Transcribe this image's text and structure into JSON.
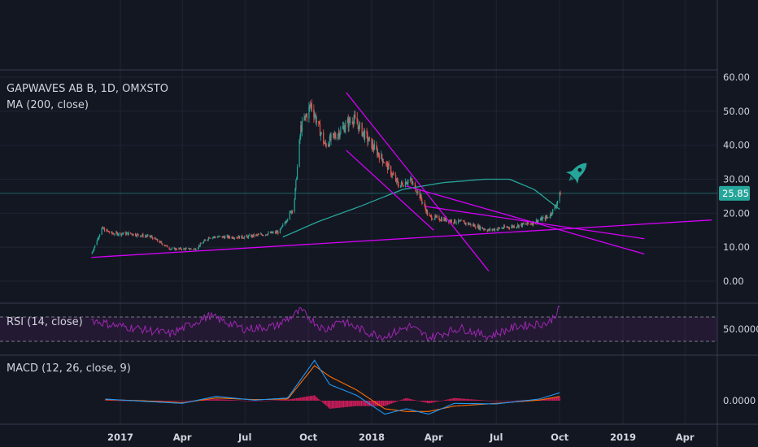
{
  "chart_data": {
    "type": "candlestick",
    "symbol_title": "GAPWAVES AB B, 1D, OMXSTO",
    "indicators": {
      "ma": {
        "label": "MA (200, close)",
        "color": "#26a69a"
      },
      "rsi": {
        "label": "RSI (14, close)",
        "level_label": "50.0000",
        "bounds": [
          30,
          70
        ],
        "color": "#9c27b0"
      },
      "macd": {
        "label": "MACD (12, 26, close, 9)",
        "level_label": "0.0000",
        "macd_color": "#2196f3",
        "signal_color": "#ff6d00",
        "hist_color": "#e91e63"
      }
    },
    "price_axis": {
      "ticks": [
        "60.00",
        "50.00",
        "40.00",
        "30.00",
        "20.00",
        "10.00",
        "0.00"
      ],
      "ylim": [
        -5,
        62
      ]
    },
    "time_axis": {
      "ticks": [
        {
          "label": "2017",
          "date": "2017-01-01"
        },
        {
          "label": "Apr",
          "date": "2017-04-01"
        },
        {
          "label": "Jul",
          "date": "2017-07-01"
        },
        {
          "label": "Oct",
          "date": "2017-10-01"
        },
        {
          "label": "2018",
          "date": "2018-01-01"
        },
        {
          "label": "Apr",
          "date": "2018-04-01"
        },
        {
          "label": "Jul",
          "date": "2018-07-01"
        },
        {
          "label": "Oct",
          "date": "2018-10-01"
        },
        {
          "label": "2019",
          "date": "2019-01-01"
        },
        {
          "label": "Apr",
          "date": "2019-04-01"
        }
      ]
    },
    "last_price": "25.85",
    "last_price_value": 25.85,
    "price_keypoints": [
      {
        "date": "2016-11-20",
        "close": 8.0
      },
      {
        "date": "2016-12-05",
        "close": 15.5
      },
      {
        "date": "2016-12-20",
        "close": 14.0
      },
      {
        "date": "2017-01-15",
        "close": 14.0
      },
      {
        "date": "2017-02-15",
        "close": 13.0
      },
      {
        "date": "2017-03-15",
        "close": 9.5
      },
      {
        "date": "2017-04-20",
        "close": 9.5
      },
      {
        "date": "2017-05-10",
        "close": 13.0
      },
      {
        "date": "2017-07-01",
        "close": 13.0
      },
      {
        "date": "2017-08-20",
        "close": 14.5
      },
      {
        "date": "2017-09-10",
        "close": 22.0
      },
      {
        "date": "2017-09-20",
        "close": 45.0
      },
      {
        "date": "2017-10-05",
        "close": 52.0
      },
      {
        "date": "2017-10-25",
        "close": 40.0
      },
      {
        "date": "2017-11-15",
        "close": 44.0
      },
      {
        "date": "2017-12-05",
        "close": 48.0
      },
      {
        "date": "2017-12-25",
        "close": 42.0
      },
      {
        "date": "2018-01-20",
        "close": 35.0
      },
      {
        "date": "2018-02-10",
        "close": 28.0
      },
      {
        "date": "2018-02-25",
        "close": 30.0
      },
      {
        "date": "2018-03-10",
        "close": 26.0
      },
      {
        "date": "2018-03-25",
        "close": 19.0
      },
      {
        "date": "2018-04-20",
        "close": 18.0
      },
      {
        "date": "2018-05-20",
        "close": 17.0
      },
      {
        "date": "2018-06-20",
        "close": 15.0
      },
      {
        "date": "2018-07-20",
        "close": 16.0
      },
      {
        "date": "2018-08-20",
        "close": 17.0
      },
      {
        "date": "2018-09-15",
        "close": 19.0
      },
      {
        "date": "2018-09-25",
        "close": 22.0
      },
      {
        "date": "2018-10-02",
        "close": 25.85
      }
    ],
    "ma200_keypoints": [
      {
        "date": "2017-08-25",
        "value": 13.0
      },
      {
        "date": "2017-10-15",
        "value": 17.5
      },
      {
        "date": "2017-12-15",
        "value": 22.0
      },
      {
        "date": "2018-02-15",
        "value": 27.0
      },
      {
        "date": "2018-04-15",
        "value": 29.0
      },
      {
        "date": "2018-06-15",
        "value": 30.0
      },
      {
        "date": "2018-07-20",
        "value": 30.0
      },
      {
        "date": "2018-08-25",
        "value": 27.0
      },
      {
        "date": "2018-10-02",
        "value": 21.0
      }
    ],
    "rsi_keypoints": [
      {
        "date": "2016-11-20",
        "value": 65
      },
      {
        "date": "2016-12-20",
        "value": 57
      },
      {
        "date": "2017-02-01",
        "value": 50
      },
      {
        "date": "2017-03-15",
        "value": 42
      },
      {
        "date": "2017-05-10",
        "value": 72
      },
      {
        "date": "2017-07-01",
        "value": 50
      },
      {
        "date": "2017-08-15",
        "value": 55
      },
      {
        "date": "2017-09-20",
        "value": 80
      },
      {
        "date": "2017-10-25",
        "value": 48
      },
      {
        "date": "2017-11-15",
        "value": 65
      },
      {
        "date": "2017-12-25",
        "value": 45
      },
      {
        "date": "2018-01-20",
        "value": 38
      },
      {
        "date": "2018-02-25",
        "value": 55
      },
      {
        "date": "2018-03-25",
        "value": 36
      },
      {
        "date": "2018-05-10",
        "value": 52
      },
      {
        "date": "2018-06-20",
        "value": 38
      },
      {
        "date": "2018-08-01",
        "value": 55
      },
      {
        "date": "2018-09-15",
        "value": 60
      },
      {
        "date": "2018-10-02",
        "value": 85
      }
    ],
    "macd_keypoints": [
      {
        "date": "2016-12-10",
        "macd": 0.3,
        "signal": 0.2
      },
      {
        "date": "2017-02-01",
        "macd": -0.1,
        "signal": 0.0
      },
      {
        "date": "2017-04-01",
        "macd": -0.5,
        "signal": -0.4
      },
      {
        "date": "2017-05-20",
        "macd": 0.8,
        "signal": 0.5
      },
      {
        "date": "2017-07-15",
        "macd": 0.1,
        "signal": 0.2
      },
      {
        "date": "2017-09-01",
        "macd": 0.5,
        "signal": 0.3
      },
      {
        "date": "2017-10-10",
        "macd": 7.5,
        "signal": 6.5
      },
      {
        "date": "2017-11-01",
        "macd": 3.0,
        "signal": 4.5
      },
      {
        "date": "2017-12-10",
        "macd": 1.0,
        "signal": 2.0
      },
      {
        "date": "2018-01-20",
        "macd": -2.5,
        "signal": -1.5
      },
      {
        "date": "2018-02-20",
        "macd": -1.5,
        "signal": -2.0
      },
      {
        "date": "2018-03-25",
        "macd": -2.5,
        "signal": -2.0
      },
      {
        "date": "2018-05-01",
        "macd": -0.5,
        "signal": -1.0
      },
      {
        "date": "2018-07-01",
        "macd": -0.6,
        "signal": -0.5
      },
      {
        "date": "2018-09-01",
        "macd": 0.3,
        "signal": 0.1
      },
      {
        "date": "2018-10-02",
        "macd": 1.5,
        "signal": 0.8
      }
    ],
    "trendlines": [
      {
        "from": {
          "date": "2016-11-20",
          "value": 7.0
        },
        "to": {
          "date": "2019-05-10",
          "value": 18.0
        }
      },
      {
        "from": {
          "date": "2017-11-25",
          "value": 55.5
        },
        "to": {
          "date": "2018-06-20",
          "value": 3.0
        }
      },
      {
        "from": {
          "date": "2017-11-25",
          "value": 38.5
        },
        "to": {
          "date": "2018-04-01",
          "value": 15.0
        }
      },
      {
        "from": {
          "date": "2018-02-20",
          "value": 28.0
        },
        "to": {
          "date": "2019-02-01",
          "value": 8.0
        }
      },
      {
        "from": {
          "date": "2018-03-20",
          "value": 22.0
        },
        "to": {
          "date": "2019-02-01",
          "value": 12.5
        }
      }
    ],
    "colors": {
      "up": "#26a69a",
      "down": "#ef5350",
      "trendline": "#d500f9",
      "tag": "#26a69a",
      "background": "#131722"
    },
    "annotation_icon": "rocket-icon"
  }
}
